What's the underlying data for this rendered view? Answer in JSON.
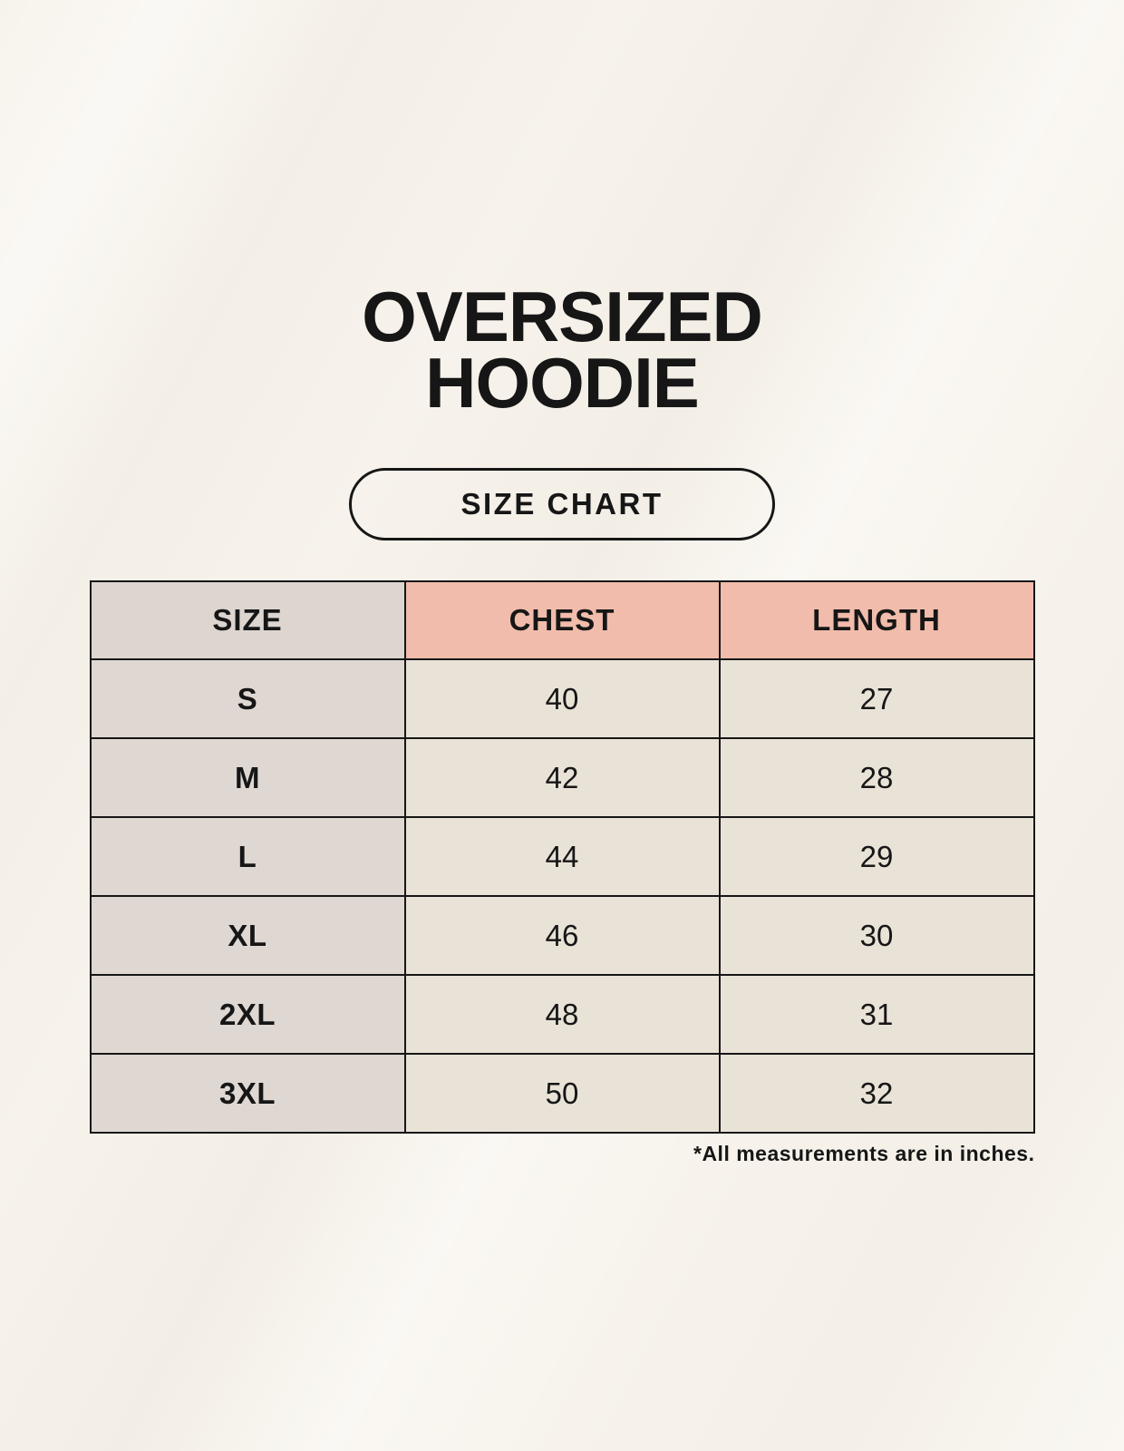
{
  "title": "OVERSIZED HOODIE",
  "size_chart_label": "SIZE CHART",
  "table": {
    "headers": [
      "SIZE",
      "CHEST",
      "LENGTH"
    ],
    "rows": [
      [
        "S",
        "40",
        "27"
      ],
      [
        "M",
        "42",
        "28"
      ],
      [
        "L",
        "44",
        "29"
      ],
      [
        "XL",
        "46",
        "30"
      ],
      [
        "2XL",
        "48",
        "31"
      ],
      [
        "3XL",
        "50",
        "32"
      ]
    ]
  },
  "footnote": "*All measurements are in inches.",
  "colors": {
    "background": "#f7f3ec",
    "text": "#161616",
    "border": "#161616",
    "header_size_bg": "#dcd5d0",
    "header_measure_bg": "#f1bcab",
    "size_column_bg": "#ded7d2",
    "value_cell_bg": "#e9e2d7"
  }
}
